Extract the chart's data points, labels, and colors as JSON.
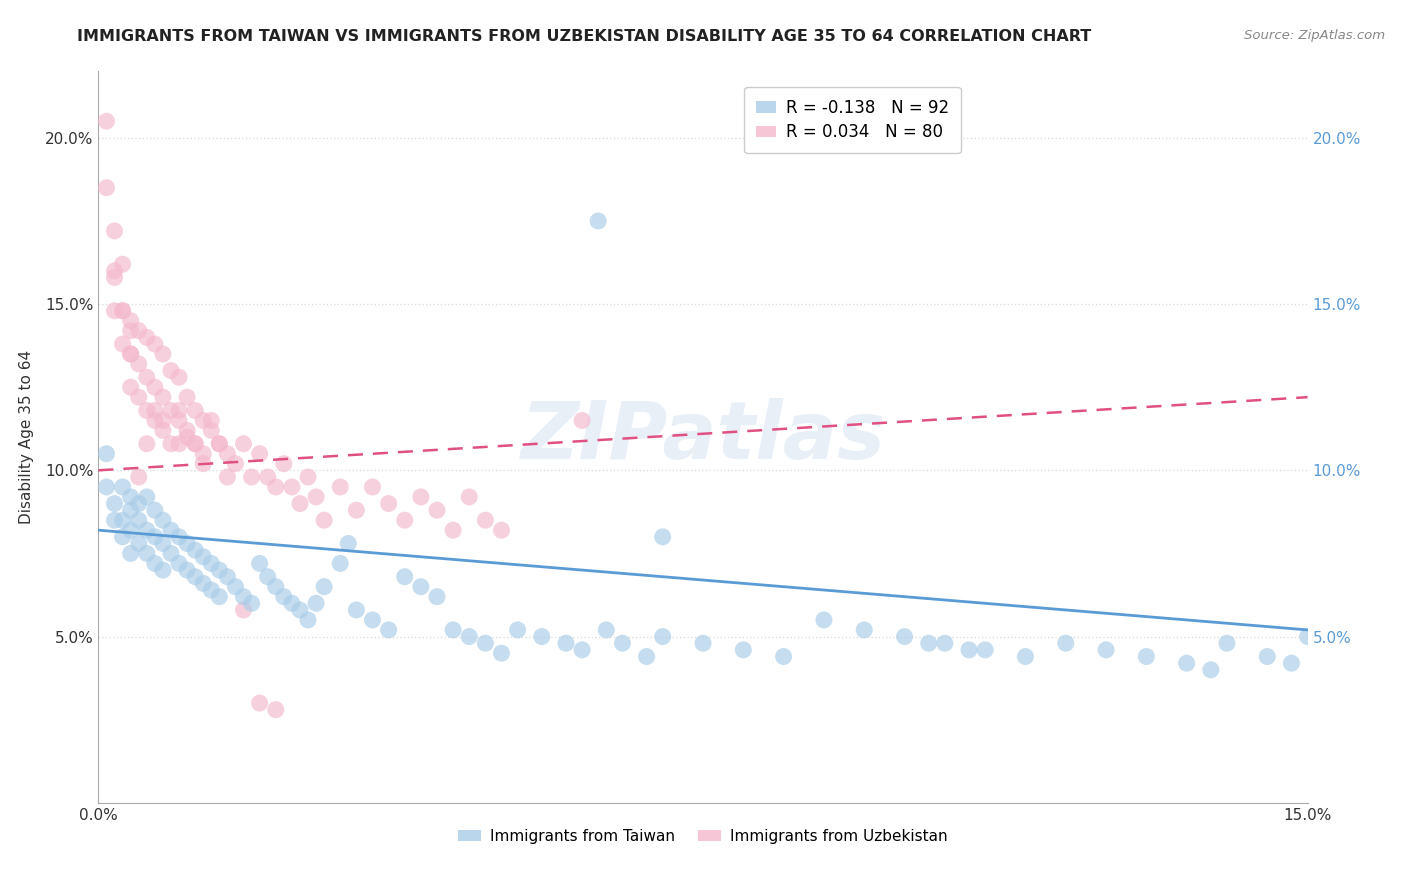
{
  "title": "IMMIGRANTS FROM TAIWAN VS IMMIGRANTS FROM UZBEKISTAN DISABILITY AGE 35 TO 64 CORRELATION CHART",
  "source": "Source: ZipAtlas.com",
  "ylabel": "Disability Age 35 to 64",
  "xlim": [
    0.0,
    0.15
  ],
  "ylim": [
    0.0,
    0.22
  ],
  "xticks": [
    0.0,
    0.03,
    0.06,
    0.09,
    0.12,
    0.15
  ],
  "yticks": [
    0.0,
    0.05,
    0.1,
    0.15,
    0.2
  ],
  "ytick_labels_left": [
    "",
    "5.0%",
    "10.0%",
    "15.0%",
    "20.0%"
  ],
  "ytick_labels_right": [
    "",
    "5.0%",
    "10.0%",
    "15.0%",
    "20.0%"
  ],
  "xtick_labels": [
    "0.0%",
    "",
    "",
    "",
    "",
    "15.0%"
  ],
  "taiwan_color": "#a8cce8",
  "uzbekistan_color": "#f4b8cc",
  "taiwan_line_color": "#5b9bd5",
  "uzbekistan_line_color": "#e05080",
  "taiwan_R": -0.138,
  "taiwan_N": 92,
  "uzbekistan_R": 0.034,
  "uzbekistan_N": 80,
  "taiwan_line_x0": 0.0,
  "taiwan_line_y0": 0.082,
  "taiwan_line_x1": 0.15,
  "taiwan_line_y1": 0.052,
  "uzbekistan_line_x0": 0.0,
  "uzbekistan_line_y0": 0.1,
  "uzbekistan_line_x1": 0.15,
  "uzbekistan_line_y1": 0.122,
  "taiwan_x": [
    0.001,
    0.001,
    0.002,
    0.002,
    0.003,
    0.003,
    0.003,
    0.004,
    0.004,
    0.004,
    0.004,
    0.005,
    0.005,
    0.005,
    0.006,
    0.006,
    0.006,
    0.007,
    0.007,
    0.007,
    0.008,
    0.008,
    0.008,
    0.009,
    0.009,
    0.01,
    0.01,
    0.011,
    0.011,
    0.012,
    0.012,
    0.013,
    0.013,
    0.014,
    0.014,
    0.015,
    0.015,
    0.016,
    0.017,
    0.018,
    0.019,
    0.02,
    0.021,
    0.022,
    0.023,
    0.024,
    0.025,
    0.026,
    0.027,
    0.028,
    0.03,
    0.031,
    0.032,
    0.034,
    0.036,
    0.038,
    0.04,
    0.042,
    0.044,
    0.046,
    0.048,
    0.05,
    0.052,
    0.055,
    0.058,
    0.06,
    0.063,
    0.065,
    0.068,
    0.07,
    0.075,
    0.08,
    0.085,
    0.09,
    0.095,
    0.1,
    0.105,
    0.11,
    0.115,
    0.12,
    0.125,
    0.13,
    0.135,
    0.138,
    0.14,
    0.145,
    0.148,
    0.15,
    0.103,
    0.108,
    0.062,
    0.07
  ],
  "taiwan_y": [
    0.105,
    0.095,
    0.09,
    0.085,
    0.095,
    0.085,
    0.08,
    0.092,
    0.088,
    0.082,
    0.075,
    0.09,
    0.085,
    0.078,
    0.092,
    0.082,
    0.075,
    0.088,
    0.08,
    0.072,
    0.085,
    0.078,
    0.07,
    0.082,
    0.075,
    0.08,
    0.072,
    0.078,
    0.07,
    0.076,
    0.068,
    0.074,
    0.066,
    0.072,
    0.064,
    0.07,
    0.062,
    0.068,
    0.065,
    0.062,
    0.06,
    0.072,
    0.068,
    0.065,
    0.062,
    0.06,
    0.058,
    0.055,
    0.06,
    0.065,
    0.072,
    0.078,
    0.058,
    0.055,
    0.052,
    0.068,
    0.065,
    0.062,
    0.052,
    0.05,
    0.048,
    0.045,
    0.052,
    0.05,
    0.048,
    0.046,
    0.052,
    0.048,
    0.044,
    0.05,
    0.048,
    0.046,
    0.044,
    0.055,
    0.052,
    0.05,
    0.048,
    0.046,
    0.044,
    0.048,
    0.046,
    0.044,
    0.042,
    0.04,
    0.048,
    0.044,
    0.042,
    0.05,
    0.048,
    0.046,
    0.175,
    0.08
  ],
  "uzbekistan_x": [
    0.001,
    0.001,
    0.002,
    0.002,
    0.002,
    0.003,
    0.003,
    0.003,
    0.004,
    0.004,
    0.004,
    0.005,
    0.005,
    0.005,
    0.006,
    0.006,
    0.006,
    0.007,
    0.007,
    0.007,
    0.008,
    0.008,
    0.008,
    0.009,
    0.009,
    0.01,
    0.01,
    0.01,
    0.011,
    0.011,
    0.012,
    0.012,
    0.013,
    0.013,
    0.014,
    0.015,
    0.016,
    0.017,
    0.018,
    0.019,
    0.02,
    0.021,
    0.022,
    0.023,
    0.024,
    0.025,
    0.026,
    0.027,
    0.028,
    0.03,
    0.032,
    0.034,
    0.036,
    0.038,
    0.04,
    0.042,
    0.044,
    0.046,
    0.048,
    0.05,
    0.002,
    0.003,
    0.004,
    0.004,
    0.005,
    0.006,
    0.007,
    0.008,
    0.009,
    0.01,
    0.011,
    0.012,
    0.013,
    0.014,
    0.015,
    0.016,
    0.018,
    0.02,
    0.022,
    0.06
  ],
  "uzbekistan_y": [
    0.205,
    0.185,
    0.172,
    0.16,
    0.148,
    0.162,
    0.148,
    0.138,
    0.145,
    0.135,
    0.125,
    0.142,
    0.132,
    0.122,
    0.14,
    0.128,
    0.118,
    0.138,
    0.125,
    0.115,
    0.135,
    0.122,
    0.112,
    0.13,
    0.118,
    0.128,
    0.115,
    0.108,
    0.122,
    0.11,
    0.118,
    0.108,
    0.115,
    0.105,
    0.112,
    0.108,
    0.105,
    0.102,
    0.108,
    0.098,
    0.105,
    0.098,
    0.095,
    0.102,
    0.095,
    0.09,
    0.098,
    0.092,
    0.085,
    0.095,
    0.088,
    0.095,
    0.09,
    0.085,
    0.092,
    0.088,
    0.082,
    0.092,
    0.085,
    0.082,
    0.158,
    0.148,
    0.142,
    0.135,
    0.098,
    0.108,
    0.118,
    0.115,
    0.108,
    0.118,
    0.112,
    0.108,
    0.102,
    0.115,
    0.108,
    0.098,
    0.058,
    0.03,
    0.028,
    0.115
  ],
  "background_color": "#ffffff",
  "grid_color": "#dddddd",
  "watermark_text": "ZIPatlas",
  "legend_taiwan_label": "Immigrants from Taiwan",
  "legend_uzbekistan_label": "Immigrants from Uzbekistan"
}
